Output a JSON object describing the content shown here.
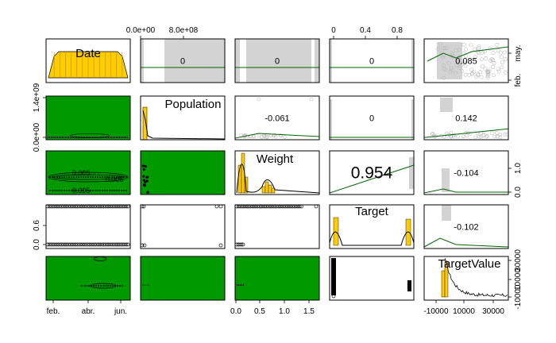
{
  "chart_data": {
    "type": "scatter",
    "title": "",
    "variables": [
      "Date",
      "Population",
      "Weight",
      "Target",
      "TargetValue"
    ],
    "correlations": [
      {
        "row": 0,
        "col": 1,
        "value": "0"
      },
      {
        "row": 0,
        "col": 2,
        "value": "0"
      },
      {
        "row": 0,
        "col": 3,
        "value": "0"
      },
      {
        "row": 0,
        "col": 4,
        "value": "0.085"
      },
      {
        "row": 1,
        "col": 2,
        "value": "-0.061"
      },
      {
        "row": 1,
        "col": 3,
        "value": "0"
      },
      {
        "row": 1,
        "col": 4,
        "value": "0.142"
      },
      {
        "row": 2,
        "col": 3,
        "value": "0.954"
      },
      {
        "row": 2,
        "col": 4,
        "value": "-0.104"
      },
      {
        "row": 3,
        "col": 4,
        "value": "-0.102"
      }
    ],
    "axes": {
      "top": [
        {
          "col": 1,
          "ticks": [
            "0.0e+00",
            "8.0e+08"
          ]
        },
        {
          "col": 3,
          "ticks": [
            "0",
            "0.4",
            "0.8"
          ]
        }
      ],
      "bottom": [
        {
          "col": 0,
          "ticks": [
            "feb.",
            "abr.",
            "jun."
          ]
        },
        {
          "col": 2,
          "ticks": [
            "0.0",
            "0.5",
            "1.0",
            "1.5"
          ]
        },
        {
          "col": 4,
          "ticks": [
            "-10000",
            "10000",
            "30000"
          ]
        }
      ],
      "left": [
        {
          "row": 1,
          "ticks": [
            "0.0e+00",
            "1.4e+09"
          ]
        },
        {
          "row": 3,
          "ticks": [
            "0.0",
            "0.6"
          ]
        }
      ],
      "right": [
        {
          "row": 0,
          "ticks": [
            "feb.",
            "may."
          ]
        },
        {
          "row": 2,
          "ticks": [
            "0.0",
            "1.0"
          ]
        },
        {
          "row": 4,
          "ticks": [
            "-10000",
            "10000",
            "30000"
          ]
        }
      ]
    },
    "panel_data": {
      "weight_target_line": {
        "x": [
          0.0,
          1.0
        ],
        "y": [
          0.0,
          1.0
        ]
      },
      "population_targetvalue_line": {
        "x": [
          0.0,
          1.0
        ],
        "y": [
          0.05,
          0.25
        ]
      }
    },
    "colors": {
      "histogram": "#ffcc00",
      "fill": "#009900",
      "smoother": "#006600",
      "points": "#000000",
      "gray_points": "#bbbbbb",
      "band": "#d3d3d3"
    }
  }
}
